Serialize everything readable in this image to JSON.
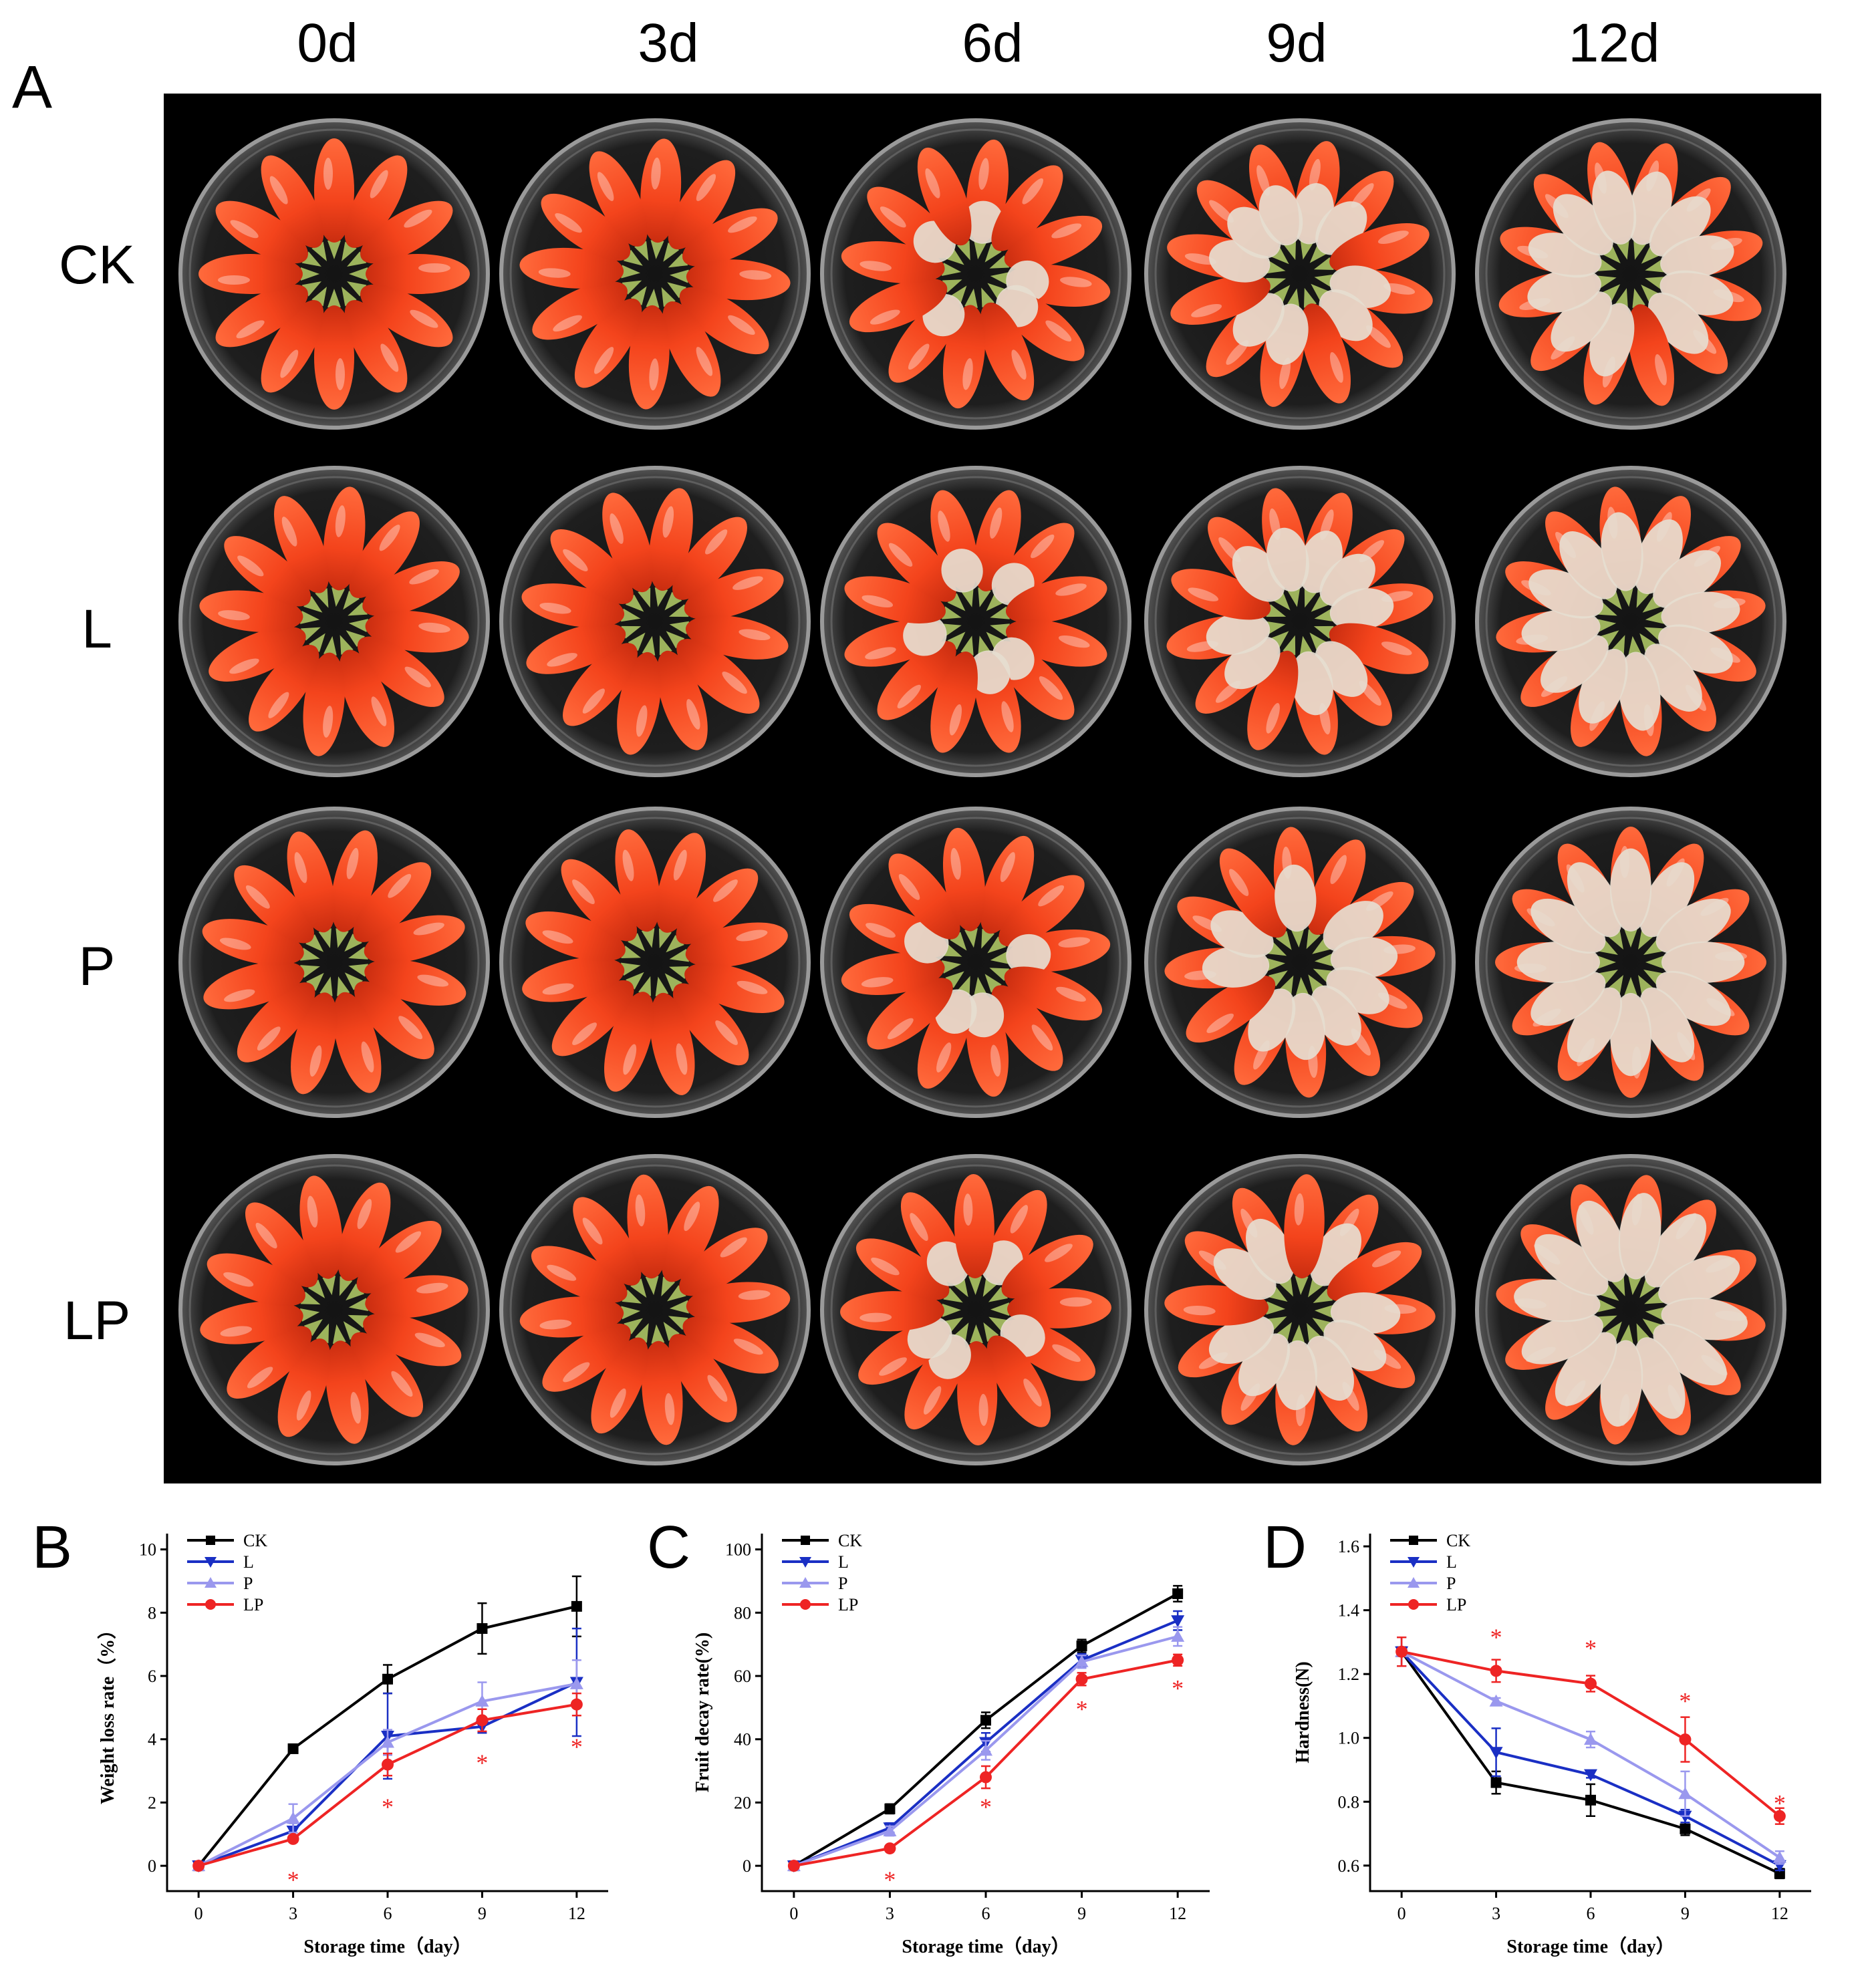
{
  "panel_labels": {
    "a": "A",
    "b": "B",
    "c": "C",
    "d": "D"
  },
  "photo": {
    "columns": [
      "0d",
      "3d",
      "6d",
      "9d",
      "12d"
    ],
    "rows": [
      "CK",
      "L",
      "P",
      "LP"
    ],
    "mold_stage": [
      0,
      0,
      0.2,
      0.55,
      0.8
    ]
  },
  "colors": {
    "CK": "#000000",
    "L": "#1a2fc4",
    "P": "#9a98ee",
    "LP": "#ee2424",
    "star": "#ee2424",
    "fruit": "#f4441c",
    "mold": "#e6ddd0"
  },
  "chart_data": [
    {
      "type": "line",
      "panel": "B",
      "xlabel": "Storage time（day）",
      "ylabel": "Weight loss rate（%）",
      "x": [
        0,
        3,
        6,
        9,
        12
      ],
      "xlim": [
        -1,
        13
      ],
      "ylim": [
        -0.8,
        10.5
      ],
      "yticks": [
        0,
        2,
        4,
        6,
        8,
        10
      ],
      "ytick_labels": [
        "0",
        "2",
        "4",
        "6",
        "8",
        "10"
      ],
      "legend_position": "top-left",
      "series": [
        {
          "name": "CK",
          "marker": "square",
          "values": [
            0,
            3.7,
            5.9,
            7.5,
            8.2
          ],
          "errors": [
            0,
            0.1,
            0.45,
            0.8,
            0.95
          ]
        },
        {
          "name": "L",
          "marker": "triangle-down",
          "values": [
            0,
            1.1,
            4.1,
            4.4,
            5.8
          ],
          "errors": [
            0,
            0.25,
            1.35,
            0.2,
            1.7
          ]
        },
        {
          "name": "P",
          "marker": "triangle-up",
          "values": [
            0,
            1.5,
            3.9,
            5.2,
            5.75
          ],
          "errors": [
            0,
            0.45,
            0.4,
            0.6,
            0.75
          ]
        },
        {
          "name": "LP",
          "marker": "circle",
          "values": [
            0,
            0.85,
            3.2,
            4.6,
            5.1
          ],
          "errors": [
            0,
            0.1,
            0.35,
            0.35,
            0.35
          ]
        }
      ],
      "significance": [
        {
          "x": 3,
          "y": -0.4,
          "label": "*"
        },
        {
          "x": 6,
          "y": 1.9,
          "label": "*"
        },
        {
          "x": 9,
          "y": 3.3,
          "label": "*"
        },
        {
          "x": 12,
          "y": 3.8,
          "label": "*"
        }
      ]
    },
    {
      "type": "line",
      "panel": "C",
      "xlabel": "Storage time（day）",
      "ylabel": "Fruit decay rate(%)",
      "x": [
        0,
        3,
        6,
        9,
        12
      ],
      "xlim": [
        -1,
        13
      ],
      "ylim": [
        -8,
        105
      ],
      "yticks": [
        0,
        20,
        40,
        60,
        80,
        100
      ],
      "ytick_labels": [
        "0",
        "20",
        "40",
        "60",
        "80",
        "100"
      ],
      "legend_position": "top-left",
      "series": [
        {
          "name": "CK",
          "marker": "square",
          "values": [
            0,
            18,
            46,
            69.5,
            86
          ],
          "errors": [
            0,
            1.5,
            2.5,
            2,
            2.5
          ]
        },
        {
          "name": "L",
          "marker": "triangle-down",
          "values": [
            0,
            12,
            39,
            65,
            77.5
          ],
          "errors": [
            0,
            1.5,
            3,
            2,
            3
          ]
        },
        {
          "name": "P",
          "marker": "triangle-up",
          "values": [
            0,
            11,
            36.5,
            64.5,
            72.5
          ],
          "errors": [
            0,
            1.5,
            3,
            2,
            3
          ]
        },
        {
          "name": "LP",
          "marker": "circle",
          "values": [
            0,
            5.5,
            28,
            59,
            65
          ],
          "errors": [
            0,
            0.8,
            3.5,
            2,
            1.8
          ]
        }
      ],
      "significance": [
        {
          "x": 3,
          "y": -4,
          "label": "*"
        },
        {
          "x": 6,
          "y": 19,
          "label": "*"
        },
        {
          "x": 9,
          "y": 50,
          "label": "*"
        },
        {
          "x": 12,
          "y": 56.5,
          "label": "*"
        }
      ]
    },
    {
      "type": "line",
      "panel": "D",
      "xlabel": "Storage time（day）",
      "ylabel": "Hardness(N)",
      "x": [
        0,
        3,
        6,
        9,
        12
      ],
      "xlim": [
        -1,
        13
      ],
      "ylim": [
        0.52,
        1.64
      ],
      "yticks": [
        0.6,
        0.8,
        1.0,
        1.2,
        1.4,
        1.6
      ],
      "ytick_labels": [
        "0.6",
        "0.8",
        "1.0",
        "1.2",
        "1.4",
        "1.6"
      ],
      "legend_position": "top-left",
      "series": [
        {
          "name": "CK",
          "marker": "square",
          "values": [
            1.27,
            0.86,
            0.805,
            0.715,
            0.575
          ],
          "errors": [
            0.045,
            0.035,
            0.05,
            0.02,
            0.015
          ]
        },
        {
          "name": "L",
          "marker": "triangle-down",
          "values": [
            1.27,
            0.955,
            0.885,
            0.755,
            0.6
          ],
          "errors": [
            0.045,
            0.075,
            0.01,
            0.02,
            0.015
          ]
        },
        {
          "name": "P",
          "marker": "triangle-up",
          "values": [
            1.27,
            1.115,
            0.995,
            0.825,
            0.625
          ],
          "errors": [
            0.045,
            0.01,
            0.025,
            0.07,
            0.02
          ]
        },
        {
          "name": "LP",
          "marker": "circle",
          "values": [
            1.27,
            1.21,
            1.17,
            0.995,
            0.755
          ],
          "errors": [
            0.045,
            0.035,
            0.025,
            0.07,
            0.025
          ]
        }
      ],
      "significance": [
        {
          "x": 3,
          "y": 1.32,
          "label": "*"
        },
        {
          "x": 6,
          "y": 1.285,
          "label": "*"
        },
        {
          "x": 9,
          "y": 1.12,
          "label": "*"
        },
        {
          "x": 12,
          "y": 0.8,
          "label": "*"
        }
      ]
    }
  ]
}
